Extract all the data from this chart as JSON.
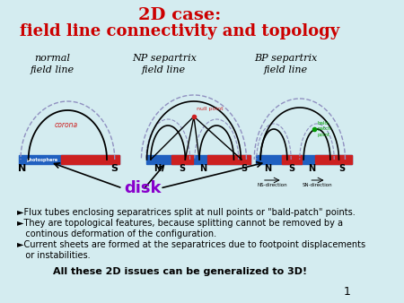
{
  "title_line1": "2D case:",
  "title_line2": "field line connectivity and topology",
  "bg_color": "#d4ecf0",
  "title_color": "#cc0000",
  "slide_number": "1",
  "label1": "normal\nfield line",
  "label2": "NP separtrix\nfield line",
  "label3": "BP separtrix\nfield line",
  "disk_label": "disk",
  "disk_color": "#8800cc",
  "bullet1": "►Flux tubes enclosing separatrices split at null points or \"bald-patch\" points.",
  "bullet2a": "►They are topological features, because splitting cannot be removed by a",
  "bullet2b": "   continous deformation of the configuration.",
  "bullet3a": "►Current sheets are formed at the separatrices due to footpoint displacements",
  "bullet3b": "   or instabilities.",
  "bottom_text": "All these 2D issues can be generalized to 3D!",
  "blue_color": "#2060c0",
  "red_color": "#cc2020",
  "green_color": "#009900",
  "dashed_color": "#9090c0"
}
